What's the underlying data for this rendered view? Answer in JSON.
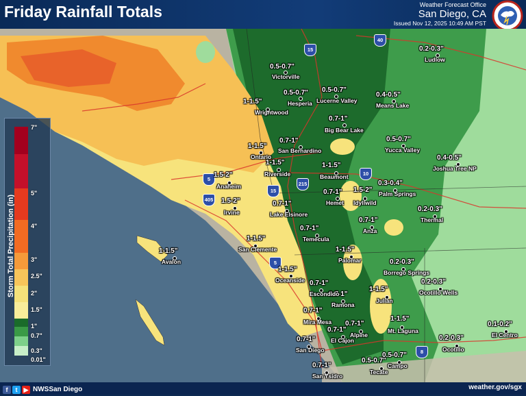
{
  "header": {
    "title": "Friday Rainfall Totals",
    "office": "Weather Forecast Office",
    "city": "San Diego, CA",
    "issued": "Issued Nov 12, 2025 10:49 AM PST",
    "logo_text": "NATIONAL WEATHER SERVICE"
  },
  "legend": {
    "title": "Storm Total Precipitation (in)",
    "ticks": [
      "7\"",
      "5\"",
      "4\"",
      "3\"",
      "2.5\"",
      "2\"",
      "1.5\"",
      "1\"",
      "0.7\"",
      "0.3\"",
      "0.01\""
    ],
    "colors": [
      "#a3001e",
      "#c4102a",
      "#e53a1f",
      "#f26b22",
      "#f59a3a",
      "#f7c55a",
      "#f5e27a",
      "#f8ed9a",
      "#1a6b2a",
      "#3a9a46",
      "#7ed08a",
      "#c8efc8"
    ]
  },
  "amounts": [
    "0.5-0.7\"",
    "0.5-0.7\"",
    "0.5-0.7\"",
    "0.4-0.5\"",
    "0.2-0.3\"",
    "1-1.5\"",
    "0.7-1\"",
    "1-1.5\"",
    "0.7-1\"",
    "0.5-0.7\"",
    "1-1.5\"",
    "0.4-0.5\"",
    "1.5-2\"",
    "1-1.5\"",
    "1.5-2\"",
    "0.7-1\"",
    "1.5-2\"",
    "0.3-0.4\"",
    "0.7-1\"",
    "0.2-0.3\"",
    "0.7-1\"",
    "1-1.5\"",
    "0.7-1\"",
    "1-1.5\"",
    "1-1.5\"",
    "0.2-0.3\"",
    "1-1.5\"",
    "0.7-1\"",
    "0.2-0.3\"",
    "0.7-1\"",
    "0.7-1\"",
    "1-1.5\"",
    "0.7-1\"",
    "0.7-1\"",
    "0.7-1\"",
    "0.5-0.7\"",
    "0.5-0.7\"",
    "0.2-0.3\"",
    "0.1-0.2\"",
    "0.7-1\"",
    "1-1.5\""
  ],
  "places": [
    "Victorville",
    "Hesperia",
    "Lucerne Valley",
    "Means Lake",
    "Ludlow",
    "Wrightwood",
    "Big Bear Lake",
    "San Bernardino",
    "Ontario",
    "Yucca Valley",
    "Joshua Tree NP",
    "Riverside",
    "Beaumont",
    "Anaheim",
    "Palm Springs",
    "Hemet",
    "Idyllwild",
    "Irvine",
    "Lake Elsinore",
    "Thermal",
    "Anza",
    "Temecula",
    "San Clemente",
    "Palomar",
    "Borrego Springs",
    "Avalon",
    "Oceanside",
    "Escondido",
    "Ocotillo Wells",
    "Ramona",
    "Julian",
    "Mira Mesa",
    "Mt. Laguna",
    "Alpine",
    "El Cajon",
    "El Centro",
    "San Diego",
    "Ocotillo",
    "Campo",
    "Tecate",
    "San Ysidro"
  ],
  "highways": [
    "15",
    "40",
    "10",
    "215",
    "5",
    "405",
    "15",
    "5",
    "8"
  ],
  "footer": {
    "handle": "NWSSan Diego",
    "website": "weather.gov/sgx",
    "icons": [
      "facebook-icon",
      "twitter-icon",
      "youtube-icon"
    ]
  }
}
